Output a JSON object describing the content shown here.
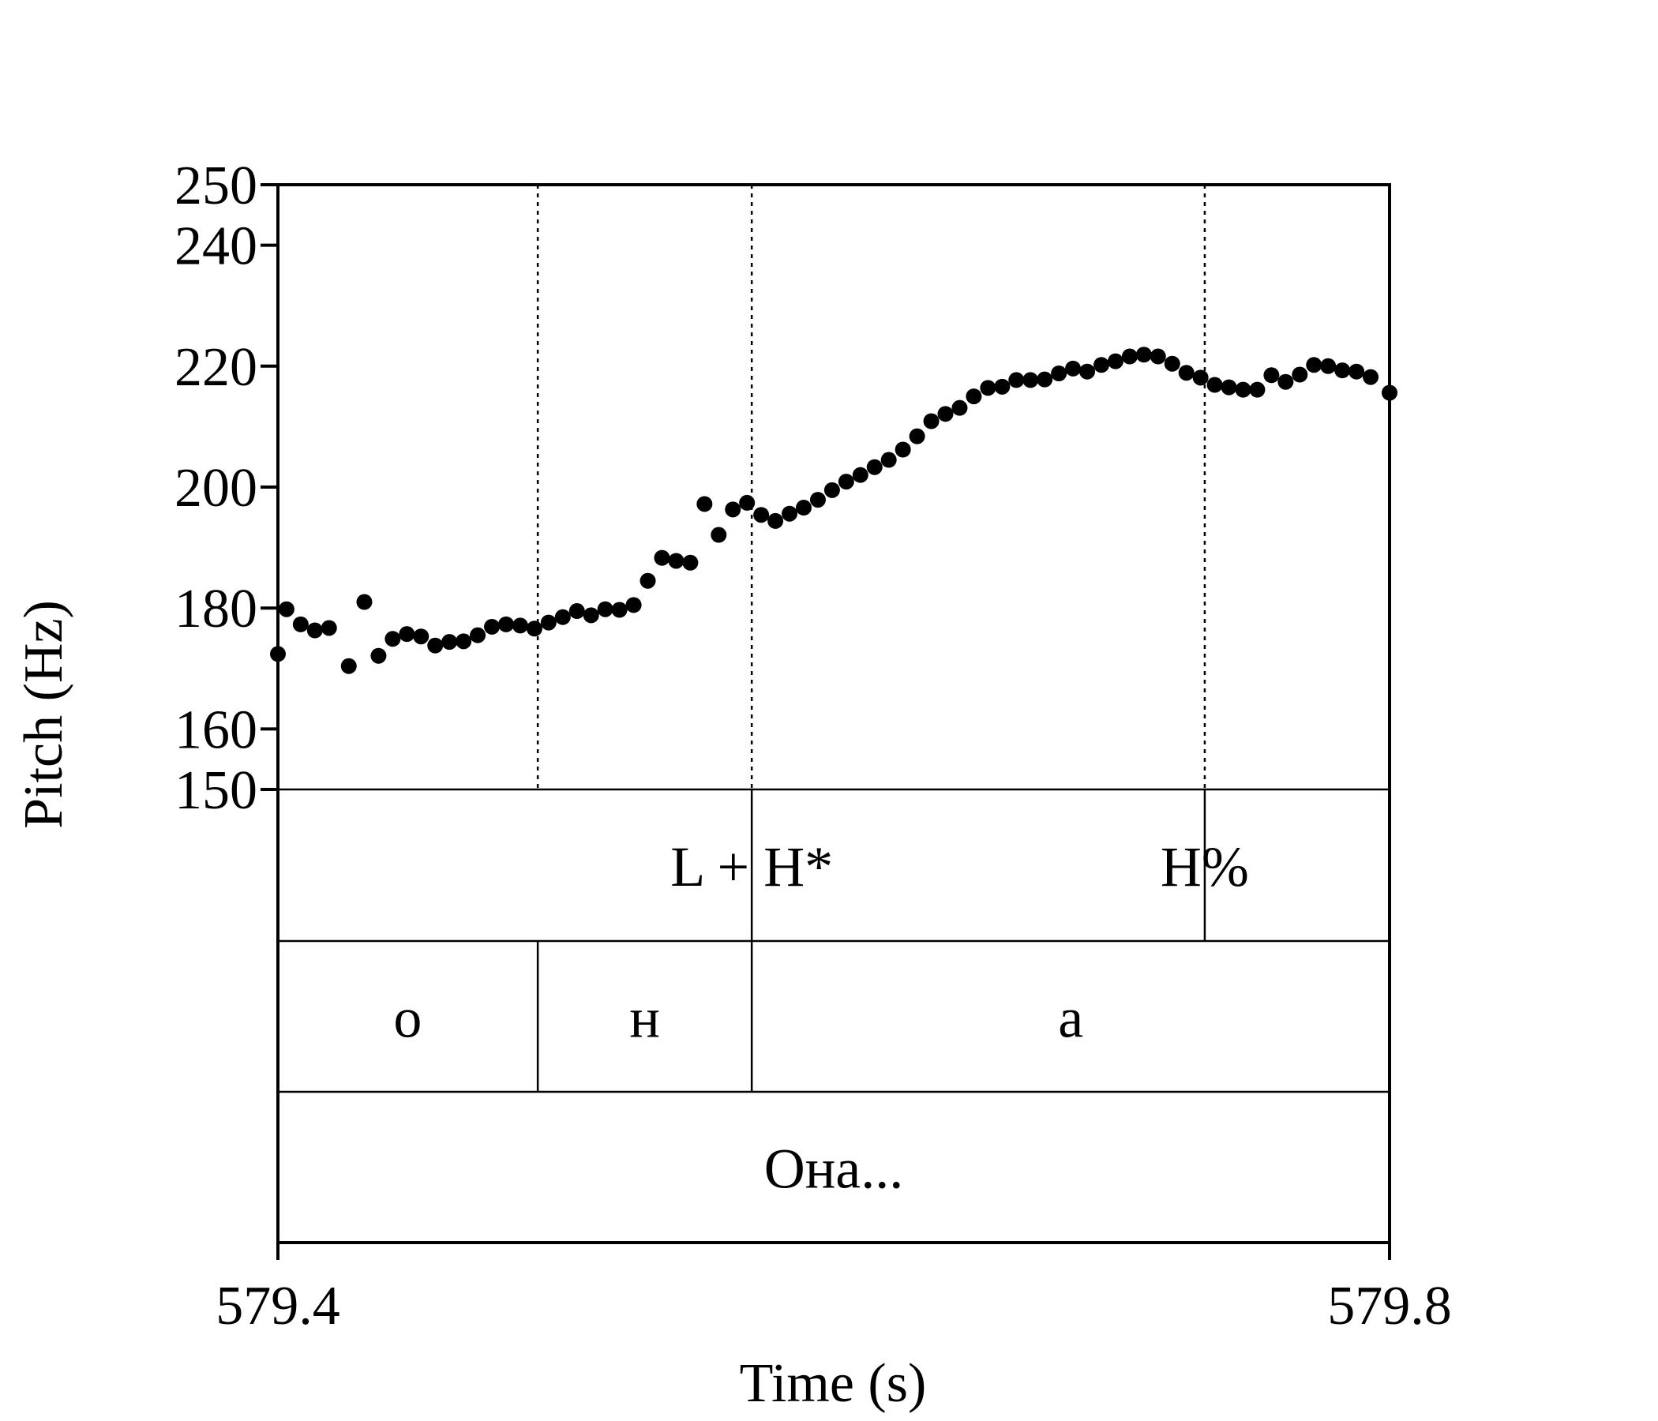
{
  "chart_data": {
    "type": "scatter",
    "xlabel": "Time (s)",
    "ylabel": "Pitch (Hz)",
    "xlim": [
      579.4,
      579.8
    ],
    "ylim": [
      150,
      250
    ],
    "x_ticks": [
      "579.4",
      "579.8"
    ],
    "y_ticks": [
      150,
      160,
      180,
      200,
      220,
      240,
      250
    ],
    "y_tick_labels": [
      "150",
      "160",
      "180",
      "200",
      "220",
      "240",
      "250"
    ],
    "grid": false,
    "point_color": "#000000",
    "series": [
      {
        "points": [
          [
            579.4,
            172.4
          ],
          [
            579.4031,
            179.8
          ],
          [
            579.4082,
            177.3
          ],
          [
            579.4133,
            176.3
          ],
          [
            579.4184,
            176.7
          ],
          [
            579.4255,
            170.4
          ],
          [
            579.4311,
            181.0
          ],
          [
            579.4362,
            172.1
          ],
          [
            579.4413,
            174.9
          ],
          [
            579.4464,
            175.7
          ],
          [
            579.4515,
            175.3
          ],
          [
            579.4566,
            173.8
          ],
          [
            579.4617,
            174.4
          ],
          [
            579.4668,
            174.5
          ],
          [
            579.4719,
            175.5
          ],
          [
            579.477,
            176.9
          ],
          [
            579.4821,
            177.3
          ],
          [
            579.4872,
            177.1
          ],
          [
            579.4923,
            176.6
          ],
          [
            579.4974,
            177.6
          ],
          [
            579.5025,
            178.5
          ],
          [
            579.5076,
            179.5
          ],
          [
            579.5127,
            178.8
          ],
          [
            579.5178,
            179.8
          ],
          [
            579.5229,
            179.7
          ],
          [
            579.528,
            180.5
          ],
          [
            579.5331,
            184.5
          ],
          [
            579.5382,
            188.3
          ],
          [
            579.5433,
            187.8
          ],
          [
            579.5484,
            187.5
          ],
          [
            579.5535,
            197.2
          ],
          [
            579.5586,
            192.1
          ],
          [
            579.5637,
            196.3
          ],
          [
            579.5688,
            197.4
          ],
          [
            579.5739,
            195.4
          ],
          [
            579.579,
            194.4
          ],
          [
            579.5841,
            195.6
          ],
          [
            579.5892,
            196.6
          ],
          [
            579.5943,
            197.9
          ],
          [
            579.5994,
            199.5
          ],
          [
            579.6045,
            200.9
          ],
          [
            579.6096,
            202.0
          ],
          [
            579.6147,
            203.3
          ],
          [
            579.6198,
            204.5
          ],
          [
            579.6249,
            206.2
          ],
          [
            579.63,
            208.4
          ],
          [
            579.6351,
            210.9
          ],
          [
            579.6402,
            212.1
          ],
          [
            579.6453,
            213.1
          ],
          [
            579.6504,
            215.0
          ],
          [
            579.6555,
            216.4
          ],
          [
            579.6606,
            216.6
          ],
          [
            579.6657,
            217.7
          ],
          [
            579.6708,
            217.7
          ],
          [
            579.6759,
            217.8
          ],
          [
            579.681,
            218.8
          ],
          [
            579.6861,
            219.6
          ],
          [
            579.6912,
            219.1
          ],
          [
            579.6963,
            220.2
          ],
          [
            579.7014,
            220.8
          ],
          [
            579.7065,
            221.6
          ],
          [
            579.7116,
            221.9
          ],
          [
            579.7167,
            221.6
          ],
          [
            579.7218,
            220.4
          ],
          [
            579.7269,
            218.9
          ],
          [
            579.732,
            218.1
          ],
          [
            579.7371,
            216.9
          ],
          [
            579.7422,
            216.5
          ],
          [
            579.7473,
            216.1
          ],
          [
            579.7524,
            216.1
          ],
          [
            579.7575,
            218.5
          ],
          [
            579.7626,
            217.4
          ],
          [
            579.7677,
            218.6
          ],
          [
            579.7728,
            220.2
          ],
          [
            579.7779,
            220.0
          ],
          [
            579.783,
            219.3
          ],
          [
            579.7881,
            219.1
          ],
          [
            579.7932,
            218.2
          ],
          [
            579.8,
            215.6
          ]
        ]
      }
    ],
    "dotted_boundaries": [
      579.4935,
      579.5705,
      579.7335
    ]
  },
  "tiers": [
    {
      "boundaries": [
        579.5705,
        579.7335
      ],
      "labels": [
        {
          "text": "L + H*",
          "x": 579.5705
        },
        {
          "text": "H%",
          "x": 579.7335
        }
      ]
    },
    {
      "boundaries": [
        579.4935,
        579.5705
      ],
      "labels": [
        {
          "text": "о",
          "x": 579.4467
        },
        {
          "text": "н",
          "x": 579.532
        },
        {
          "text": "а",
          "x": 579.6853
        }
      ]
    },
    {
      "boundaries": [],
      "labels": [
        {
          "text": "Она...",
          "x": 579.6
        }
      ]
    }
  ]
}
